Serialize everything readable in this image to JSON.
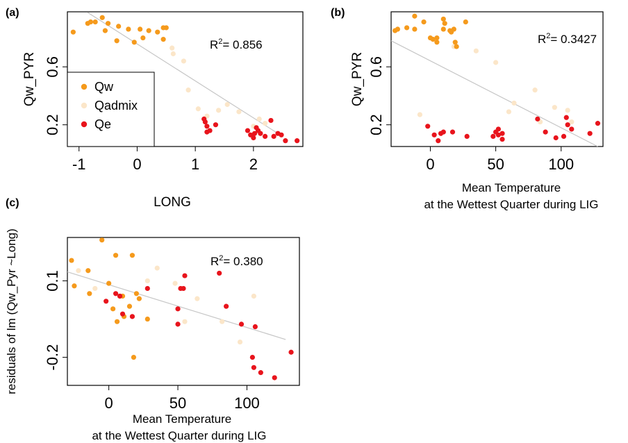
{
  "colors": {
    "Qw": "#f59a1c",
    "Qadmix": "#fbe6c9",
    "Qe": "#e8141c",
    "fit": "#c6c6c6",
    "axis": "#000000"
  },
  "legend": {
    "panel": "a",
    "position": "bottom-left",
    "items": [
      {
        "key": "Qw",
        "label": "Qw"
      },
      {
        "key": "Qadmix",
        "label": "Qadmix"
      },
      {
        "key": "Qe",
        "label": "Qe"
      }
    ]
  },
  "chart_data": [
    {
      "id": "a",
      "panel_label": "(a)",
      "type": "scatter",
      "xlabel": "LONG",
      "xlabel2": "",
      "ylabel": "Qw_PYR",
      "xlim": [
        -1.2,
        2.85
      ],
      "ylim": [
        0.05,
        0.98
      ],
      "xticks": [
        {
          "v": -1,
          "label": "-1"
        },
        {
          "v": 0,
          "label": "0"
        },
        {
          "v": 1,
          "label": "1"
        },
        {
          "v": 2,
          "label": "2"
        }
      ],
      "yticks": [
        {
          "v": 0.2,
          "label": "0.2"
        },
        {
          "v": 0.6,
          "label": "0.6"
        }
      ],
      "r2_prefix": "R",
      "r2_sup": "2",
      "r2_value": "= 0.856",
      "fit": [
        [
          -0.85,
          0.975
        ],
        [
          2.5,
          0.12
        ]
      ],
      "series": [
        {
          "key": "Qw",
          "points": [
            [
              -1.1,
              0.84
            ],
            [
              -0.85,
              0.9
            ],
            [
              -0.8,
              0.91
            ],
            [
              -0.72,
              0.91
            ],
            [
              -0.6,
              0.94
            ],
            [
              -0.55,
              0.85
            ],
            [
              -0.5,
              0.9
            ],
            [
              -0.35,
              0.78
            ],
            [
              -0.32,
              0.88
            ],
            [
              -0.15,
              0.86
            ],
            [
              -0.05,
              0.77
            ],
            [
              0.05,
              0.86
            ],
            [
              0.1,
              0.8
            ],
            [
              0.2,
              0.85
            ],
            [
              0.35,
              0.84
            ],
            [
              0.45,
              0.87
            ],
            [
              0.5,
              0.87
            ],
            [
              0.45,
              0.79
            ]
          ]
        },
        {
          "key": "Qadmix",
          "points": [
            [
              0.6,
              0.73
            ],
            [
              0.62,
              0.69
            ],
            [
              0.8,
              0.64
            ],
            [
              0.88,
              0.44
            ],
            [
              1.05,
              0.31
            ],
            [
              1.2,
              0.26
            ],
            [
              1.4,
              0.3
            ],
            [
              1.55,
              0.34
            ],
            [
              1.75,
              0.29
            ],
            [
              2.1,
              0.24
            ],
            [
              2.2,
              0.21
            ],
            [
              2.0,
              0.19
            ]
          ]
        },
        {
          "key": "Qe",
          "points": [
            [
              1.15,
              0.24
            ],
            [
              1.17,
              0.22
            ],
            [
              1.2,
              0.19
            ],
            [
              1.2,
              0.15
            ],
            [
              1.25,
              0.16
            ],
            [
              1.35,
              0.2
            ],
            [
              1.9,
              0.16
            ],
            [
              1.95,
              0.13
            ],
            [
              2.0,
              0.11
            ],
            [
              2.02,
              0.14
            ],
            [
              2.05,
              0.18
            ],
            [
              2.08,
              0.16
            ],
            [
              2.12,
              0.14
            ],
            [
              2.2,
              0.12
            ],
            [
              2.3,
              0.23
            ],
            [
              2.35,
              0.12
            ],
            [
              2.42,
              0.14
            ],
            [
              2.48,
              0.13
            ],
            [
              2.55,
              0.09
            ],
            [
              2.75,
              0.09
            ]
          ]
        }
      ]
    },
    {
      "id": "b",
      "panel_label": "(b)",
      "type": "scatter",
      "xlabel": "Mean Temperature",
      "xlabel2": "at the Wettest Quarter during LIG",
      "ylabel": "Qw_PYR",
      "xlim": [
        -30,
        132
      ],
      "ylim": [
        0.05,
        0.98
      ],
      "xticks": [
        {
          "v": 0,
          "label": "0"
        },
        {
          "v": 50,
          "label": "50"
        },
        {
          "v": 100,
          "label": "100"
        }
      ],
      "yticks": [
        {
          "v": 0.2,
          "label": "0.2"
        },
        {
          "v": 0.6,
          "label": "0.6"
        }
      ],
      "r2_prefix": "R",
      "r2_sup": "2",
      "r2_value": "= 0.3427",
      "fit": [
        [
          -30,
          0.78
        ],
        [
          128,
          0.05
        ]
      ],
      "series": [
        {
          "key": "Qw",
          "points": [
            [
              -27,
              0.85
            ],
            [
              -25,
              0.86
            ],
            [
              -18,
              0.87
            ],
            [
              -12,
              0.95
            ],
            [
              -12,
              0.86
            ],
            [
              -5,
              0.91
            ],
            [
              0,
              0.8
            ],
            [
              2,
              0.79
            ],
            [
              5,
              0.77
            ],
            [
              5,
              0.8
            ],
            [
              10,
              0.93
            ],
            [
              11,
              0.9
            ],
            [
              10,
              0.86
            ],
            [
              15,
              0.85
            ],
            [
              16,
              0.84
            ],
            [
              18,
              0.86
            ],
            [
              19,
              0.77
            ],
            [
              20,
              0.74
            ],
            [
              27,
              0.91
            ]
          ]
        },
        {
          "key": "Qadmix",
          "points": [
            [
              -8,
              0.27
            ],
            [
              18,
              0.74
            ],
            [
              35,
              0.71
            ],
            [
              50,
              0.63
            ],
            [
              60,
              0.29
            ],
            [
              64,
              0.35
            ],
            [
              80,
              0.44
            ],
            [
              84,
              0.22
            ],
            [
              95,
              0.32
            ],
            [
              105,
              0.3
            ],
            [
              108,
              0.22
            ]
          ]
        },
        {
          "key": "Qe",
          "points": [
            [
              -2,
              0.19
            ],
            [
              3,
              0.13
            ],
            [
              6,
              0.09
            ],
            [
              8,
              0.14
            ],
            [
              10,
              0.15
            ],
            [
              17,
              0.15
            ],
            [
              28,
              0.12
            ],
            [
              48,
              0.12
            ],
            [
              50,
              0.15
            ],
            [
              52,
              0.17
            ],
            [
              52,
              0.13
            ],
            [
              55,
              0.14
            ],
            [
              55,
              0.1
            ],
            [
              82,
              0.24
            ],
            [
              88,
              0.15
            ],
            [
              96,
              0.11
            ],
            [
              102,
              0.12
            ],
            [
              104,
              0.25
            ],
            [
              105,
              0.2
            ],
            [
              108,
              0.17
            ],
            [
              122,
              0.14
            ],
            [
              128,
              0.21
            ]
          ]
        }
      ]
    },
    {
      "id": "c",
      "panel_label": "(c)",
      "type": "scatter",
      "xlabel": "Mean Temperature",
      "xlabel2": "at the Wettest Quarter during LIG",
      "ylabel": "residuals of lm (Qw_Pyr ~Long)",
      "xlim": [
        -30,
        138
      ],
      "ylim": [
        -0.31,
        0.27
      ],
      "xticks": [
        {
          "v": 0,
          "label": "0"
        },
        {
          "v": 50,
          "label": "50"
        },
        {
          "v": 100,
          "label": "100"
        }
      ],
      "yticks": [
        {
          "v": -0.2,
          "label": "-0.2"
        },
        {
          "v": 0.1,
          "label": "0.1"
        }
      ],
      "r2_prefix": "R",
      "r2_sup": "2",
      "r2_value": "= 0.380",
      "fit": [
        [
          -30,
          0.135
        ],
        [
          128,
          -0.13
        ]
      ],
      "series": [
        {
          "key": "Qw",
          "points": [
            [
              -27,
              0.18
            ],
            [
              -25,
              0.08
            ],
            [
              -15,
              0.14
            ],
            [
              -14,
              0.05
            ],
            [
              -5,
              0.26
            ],
            [
              0,
              0.09
            ],
            [
              3,
              -0.01
            ],
            [
              6,
              -0.06
            ],
            [
              5,
              0.2
            ],
            [
              8,
              0.04
            ],
            [
              10,
              0.04
            ],
            [
              11,
              -0.04
            ],
            [
              15,
              0.0
            ],
            [
              17,
              0.2
            ],
            [
              18,
              -0.2
            ],
            [
              20,
              0.05
            ],
            [
              22,
              0.03
            ],
            [
              28,
              -0.05
            ]
          ]
        },
        {
          "key": "Qadmix",
          "points": [
            [
              -22,
              0.14
            ],
            [
              -10,
              0.07
            ],
            [
              28,
              0.1
            ],
            [
              35,
              0.15
            ],
            [
              48,
              0.09
            ],
            [
              55,
              -0.06
            ],
            [
              64,
              0.03
            ],
            [
              82,
              -0.06
            ],
            [
              95,
              -0.14
            ],
            [
              105,
              0.04
            ]
          ]
        },
        {
          "key": "Qe",
          "points": [
            [
              -2,
              0.02
            ],
            [
              5,
              0.05
            ],
            [
              8,
              0.04
            ],
            [
              10,
              -0.03
            ],
            [
              17,
              -0.04
            ],
            [
              28,
              0.07
            ],
            [
              50,
              -0.07
            ],
            [
              50,
              -0.01
            ],
            [
              52,
              0.07
            ],
            [
              54,
              0.07
            ],
            [
              55,
              0.12
            ],
            [
              80,
              0.13
            ],
            [
              85,
              0.0
            ],
            [
              96,
              -0.07
            ],
            [
              104,
              -0.2
            ],
            [
              105,
              -0.24
            ],
            [
              106,
              -0.08
            ],
            [
              110,
              -0.26
            ],
            [
              120,
              -0.28
            ],
            [
              132,
              -0.18
            ]
          ]
        }
      ]
    }
  ]
}
